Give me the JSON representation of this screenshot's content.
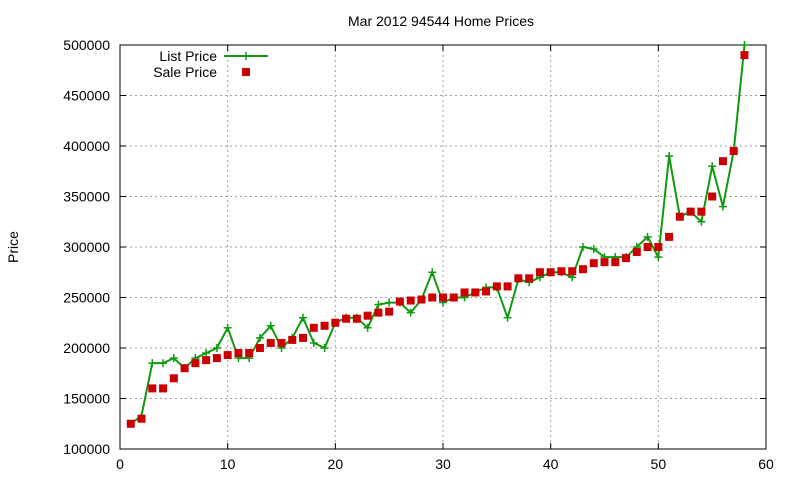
{
  "chart_data": {
    "type": "line",
    "title": "Mar 2012 94544 Home Prices",
    "xlabel": "",
    "ylabel": "Price",
    "xlim": [
      0,
      60
    ],
    "ylim": [
      100000,
      500000
    ],
    "xticks": [
      0,
      10,
      20,
      30,
      40,
      50,
      60
    ],
    "yticks": [
      100000,
      150000,
      200000,
      250000,
      300000,
      350000,
      400000,
      450000,
      500000
    ],
    "grid": true,
    "legend_position": "top-left",
    "series": [
      {
        "name": "List Price",
        "style": "line-points",
        "color": "#119911",
        "x": [
          1,
          2,
          3,
          4,
          5,
          6,
          7,
          8,
          9,
          10,
          11,
          12,
          13,
          14,
          15,
          16,
          17,
          18,
          19,
          20,
          21,
          22,
          23,
          24,
          25,
          26,
          27,
          28,
          29,
          30,
          31,
          32,
          33,
          34,
          35,
          36,
          37,
          38,
          39,
          40,
          41,
          42,
          43,
          44,
          45,
          46,
          47,
          48,
          49,
          50,
          51,
          52,
          53,
          54,
          55,
          56,
          57,
          58
        ],
        "values": [
          125000,
          133000,
          185000,
          185000,
          190000,
          180000,
          190000,
          195000,
          200000,
          220000,
          190000,
          190000,
          210000,
          222000,
          200000,
          210000,
          230000,
          205000,
          200000,
          225000,
          230000,
          230000,
          220000,
          243000,
          245000,
          245000,
          235000,
          248000,
          275000,
          245000,
          250000,
          250000,
          255000,
          260000,
          260000,
          230000,
          268000,
          265000,
          270000,
          275000,
          275000,
          270000,
          300000,
          298000,
          290000,
          290000,
          290000,
          300000,
          310000,
          290000,
          390000,
          330000,
          335000,
          325000,
          380000,
          340000,
          395000,
          500000
        ]
      },
      {
        "name": "Sale Price",
        "style": "points",
        "color": "#cc0000",
        "x": [
          1,
          2,
          3,
          4,
          5,
          6,
          7,
          8,
          9,
          10,
          11,
          12,
          13,
          14,
          15,
          16,
          17,
          18,
          19,
          20,
          21,
          22,
          23,
          24,
          25,
          26,
          27,
          28,
          29,
          30,
          31,
          32,
          33,
          34,
          35,
          36,
          37,
          38,
          39,
          40,
          41,
          42,
          43,
          44,
          45,
          46,
          47,
          48,
          49,
          50,
          51,
          52,
          53,
          54,
          55,
          56,
          57,
          58
        ],
        "values": [
          125000,
          130000,
          160000,
          160000,
          170000,
          180000,
          185000,
          188000,
          190000,
          193000,
          195000,
          195000,
          200000,
          205000,
          205000,
          208000,
          210000,
          220000,
          222000,
          225000,
          229000,
          229000,
          232000,
          235000,
          236000,
          246000,
          247000,
          248000,
          250000,
          250000,
          250000,
          255000,
          255000,
          256000,
          261000,
          261000,
          269000,
          269000,
          275000,
          275000,
          276000,
          276000,
          278000,
          284000,
          285000,
          285000,
          289000,
          295000,
          300000,
          300000,
          310000,
          330000,
          335000,
          335000,
          350000,
          385000,
          395000,
          490000
        ]
      }
    ]
  }
}
